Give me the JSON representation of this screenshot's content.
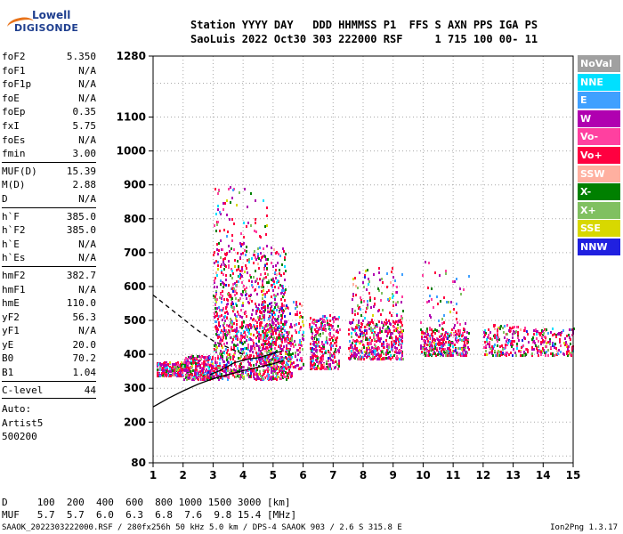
{
  "logo": {
    "line1": "Lowell",
    "line2": "DIGISONDE"
  },
  "header": {
    "line1": "Station YYYY DAY   DDD HHMMSS P1  FFS S AXN PPS IGA PS",
    "line2": "SaoLuis 2022 Oct30 303 222000 RSF     1 715 100 00- 11"
  },
  "params": [
    [
      {
        "k": "foF2",
        "v": "5.350"
      },
      {
        "k": "foF1",
        "v": "N/A"
      },
      {
        "k": "foF1p",
        "v": "N/A"
      },
      {
        "k": "foE",
        "v": "N/A"
      },
      {
        "k": "foEp",
        "v": "0.35"
      },
      {
        "k": "fxI",
        "v": "5.75"
      },
      {
        "k": "foEs",
        "v": "N/A"
      },
      {
        "k": "fmin",
        "v": "3.00"
      }
    ],
    [
      {
        "k": "MUF(D)",
        "v": "15.39"
      },
      {
        "k": "M(D)",
        "v": "2.88"
      },
      {
        "k": "D",
        "v": "N/A"
      }
    ],
    [
      {
        "k": "h`F",
        "v": "385.0"
      },
      {
        "k": "h`F2",
        "v": "385.0"
      },
      {
        "k": "h`E",
        "v": "N/A"
      },
      {
        "k": "h`Es",
        "v": "N/A"
      }
    ],
    [
      {
        "k": "hmF2",
        "v": "382.7"
      },
      {
        "k": "hmF1",
        "v": "N/A"
      },
      {
        "k": "hmE",
        "v": "110.0"
      },
      {
        "k": "yF2",
        "v": "56.3"
      },
      {
        "k": "yF1",
        "v": "N/A"
      },
      {
        "k": "yE",
        "v": "20.0"
      },
      {
        "k": "B0",
        "v": "70.2"
      },
      {
        "k": "B1",
        "v": "1.04"
      }
    ],
    [
      {
        "k": "C-level",
        "v": "44"
      }
    ]
  ],
  "auto": [
    "Auto:",
    "Artist5",
    "500200"
  ],
  "legend": [
    {
      "label": "NoVal",
      "color": "#a0a0a0"
    },
    {
      "label": "NNE",
      "color": "#00e0ff"
    },
    {
      "label": "E",
      "color": "#3fa0ff"
    },
    {
      "label": "W",
      "color": "#b000b0"
    },
    {
      "label": "Vo-",
      "color": "#ff40a0"
    },
    {
      "label": "Vo+",
      "color": "#ff0040"
    },
    {
      "label": "SSW",
      "color": "#ffb0a0"
    },
    {
      "label": "X-",
      "color": "#008000"
    },
    {
      "label": "X+",
      "color": "#80c060"
    },
    {
      "label": "SSE",
      "color": "#d8d800"
    },
    {
      "label": "NNW",
      "color": "#2020e0"
    }
  ],
  "chart_data": {
    "type": "scatter",
    "xlim": [
      1,
      15
    ],
    "ylim": [
      80,
      1280
    ],
    "x_ticks": [
      "1",
      "2",
      "3",
      "4",
      "5",
      "6",
      "7",
      "8",
      "9",
      "10",
      "11",
      "12",
      "13",
      "14",
      "15"
    ],
    "y_ticks": [
      "80",
      "200",
      "300",
      "400",
      "500",
      "600",
      "700",
      "800",
      "900",
      "1000",
      "1100",
      "1280"
    ],
    "grid": true,
    "clusters": [
      {
        "x": [
          1.1,
          2.0
        ],
        "y": [
          340,
          380
        ],
        "n": 260
      },
      {
        "x": [
          2.0,
          3.0
        ],
        "y": [
          330,
          400
        ],
        "n": 320
      },
      {
        "x": [
          3.0,
          5.6
        ],
        "y": [
          330,
          480
        ],
        "n": 700
      },
      {
        "x": [
          3.0,
          5.4
        ],
        "y": [
          480,
          720
        ],
        "n": 520
      },
      {
        "x": [
          3.0,
          4.8
        ],
        "y": [
          720,
          900
        ],
        "n": 70
      },
      {
        "x": [
          4.4,
          6.0
        ],
        "y": [
          360,
          560
        ],
        "n": 300
      },
      {
        "x": [
          6.2,
          7.2
        ],
        "y": [
          360,
          520
        ],
        "n": 300
      },
      {
        "x": [
          7.5,
          9.3
        ],
        "y": [
          390,
          500
        ],
        "n": 420
      },
      {
        "x": [
          7.6,
          9.3
        ],
        "y": [
          500,
          660
        ],
        "n": 110
      },
      {
        "x": [
          9.9,
          11.5
        ],
        "y": [
          400,
          480
        ],
        "n": 300
      },
      {
        "x": [
          9.9,
          11.5
        ],
        "y": [
          480,
          680
        ],
        "n": 50
      },
      {
        "x": [
          12.0,
          13.5
        ],
        "y": [
          400,
          490
        ],
        "n": 180
      },
      {
        "x": [
          13.6,
          15.0
        ],
        "y": [
          400,
          480
        ],
        "n": 160
      }
    ],
    "profile": {
      "x": [
        1,
        1.5,
        2,
        2.5,
        3,
        3.5,
        4,
        4.5,
        5,
        5.35
      ],
      "y": [
        245,
        270,
        292,
        312,
        328,
        340,
        352,
        362,
        372,
        382
      ]
    },
    "trace_dashed": {
      "x": [
        1,
        1.5,
        2,
        2.5,
        3,
        3.5,
        4
      ],
      "y": [
        575,
        540,
        505,
        470,
        440,
        420,
        400
      ]
    },
    "trace_solid": {
      "x": [
        2.9,
        3.3,
        3.7,
        4.1,
        4.5,
        4.9,
        5.3
      ],
      "y": [
        340,
        355,
        375,
        385,
        390,
        400,
        410
      ]
    }
  },
  "footer": {
    "line1": "D     100  200  400  600  800 1000 1500 3000 [km]",
    "line2": "MUF   5.7  5.7  6.0  6.3  6.8  7.6  9.8 15.4 [MHz]",
    "line3": "SAAOK_2022303222000.RSF / 280fx256h 50 kHz 5.0 km / DPS-4 SAAOK 903 / 2.6 S 315.8 E",
    "version": "Ion2Png 1.3.17"
  }
}
